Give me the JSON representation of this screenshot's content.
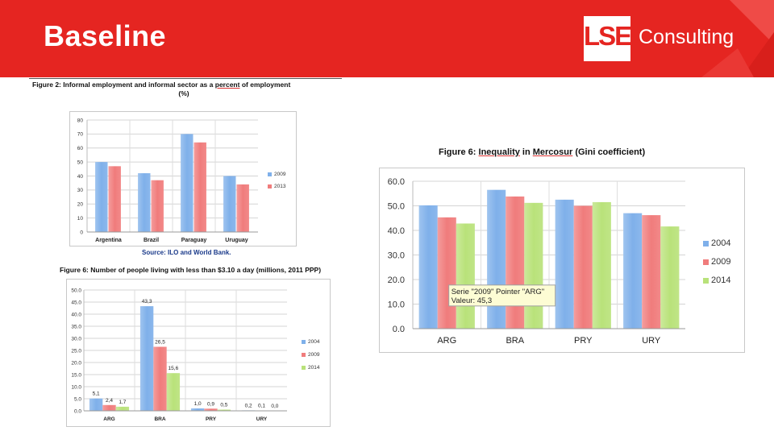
{
  "header": {
    "title": "Baseline",
    "logo_text": "LSE",
    "logo_subtitle": "Consulting",
    "accent_color": "#e52521"
  },
  "chart_data": [
    {
      "type": "bar",
      "title_prefix": "Figure 2: ",
      "title": "Informal employment and informal sector as a percent of employment (%)",
      "title_line1": "Informal employment and informal sector as a",
      "title_ul": "percent",
      "title_line1b": "of employment",
      "title_line2": "(%)",
      "source": "Source: ILO and World Bank.",
      "categories": [
        "Argentina",
        "Brazil",
        "Paraguay",
        "Uruguay"
      ],
      "series": [
        {
          "name": "2009",
          "color": "#7fb0ea",
          "values": [
            50,
            42,
            70,
            40
          ]
        },
        {
          "name": "2013",
          "color": "#f07c7c",
          "values": [
            47,
            37,
            64,
            34
          ]
        }
      ],
      "ylim": [
        0,
        80
      ],
      "yticks": [
        "0",
        "10",
        "20",
        "30",
        "40",
        "50",
        "60",
        "70",
        "80"
      ],
      "grid": true,
      "legend": "right"
    },
    {
      "type": "bar",
      "title": "Figure 6: Number of people living with less than $3.10 a day (millions, 2011 PPP)",
      "categories": [
        "ARG",
        "BRA",
        "PRY",
        "URY"
      ],
      "series": [
        {
          "name": "2004",
          "color": "#7fb0ea",
          "values": [
            5.1,
            43.3,
            1.0,
            0.2
          ],
          "labels": [
            "5,1",
            "43,3",
            "1,0",
            "0,2"
          ]
        },
        {
          "name": "2009",
          "color": "#f07c7c",
          "values": [
            2.4,
            26.5,
            0.9,
            0.1
          ],
          "labels": [
            "2,4",
            "26,5",
            "0,9",
            "0,1"
          ]
        },
        {
          "name": "2014",
          "color": "#b9e27a",
          "values": [
            1.7,
            15.6,
            0.5,
            0.0
          ],
          "labels": [
            "1,7",
            "15,6",
            "0,5",
            "0,0"
          ]
        }
      ],
      "ylim": [
        0,
        50
      ],
      "yticks": [
        "0.0",
        "5.0",
        "10.0",
        "15.0",
        "20.0",
        "25.0",
        "30.0",
        "35.0",
        "40.0",
        "45.0",
        "50.0"
      ],
      "grid": true,
      "legend": "right"
    },
    {
      "type": "bar",
      "title_prefix": "Figure 6: ",
      "title_ul1": "Inequality",
      "title_mid": " in ",
      "title_ul2": "Mercosur",
      "title_end": " (Gini coefficient)",
      "title": "Figure 6: Inequality in Mercosur (Gini coefficient)",
      "categories": [
        "ARG",
        "BRA",
        "PRY",
        "URY"
      ],
      "series": [
        {
          "name": "2004",
          "color": "#7fb0ea",
          "values": [
            50.2,
            56.5,
            52.5,
            47.0
          ]
        },
        {
          "name": "2009",
          "color": "#f07c7c",
          "values": [
            45.3,
            53.8,
            50.0,
            46.2
          ]
        },
        {
          "name": "2014",
          "color": "#b9e27a",
          "values": [
            42.8,
            51.2,
            51.5,
            41.6
          ]
        }
      ],
      "ylim": [
        0,
        60
      ],
      "yticks": [
        "0.0",
        "10.0",
        "20.0",
        "30.0",
        "40.0",
        "50.0",
        "60.0"
      ],
      "tooltip_line1": "Serie \"2009\" Pointer \"ARG\"",
      "tooltip_line2": "Valeur: 45,3",
      "grid": true,
      "legend": "right"
    }
  ]
}
